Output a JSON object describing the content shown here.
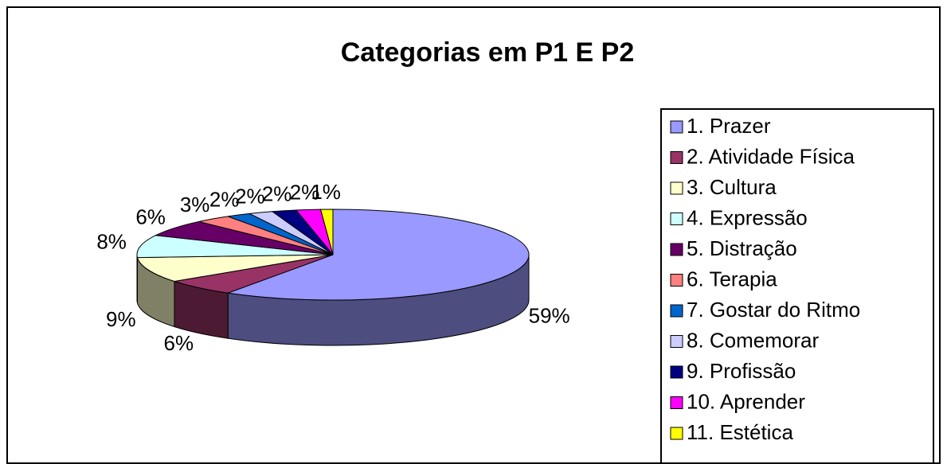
{
  "chart_data": {
    "type": "pie3d",
    "title": "Categorias em P1 E P2",
    "categories": [
      "1. Prazer",
      "2. Atividade Física",
      "3. Cultura",
      "4. Expressão",
      "5. Distração",
      "6. Terapia",
      "7. Gostar do Ritmo",
      "8. Comemorar",
      "9. Profissão",
      "10. Aprender",
      "11. Estética"
    ],
    "values": [
      59,
      6,
      9,
      8,
      6,
      3,
      2,
      2,
      2,
      2,
      1
    ],
    "value_labels": [
      "59%",
      "6%",
      "9%",
      "8%",
      "6%",
      "3%",
      "2%",
      "2%",
      "2%",
      "2%",
      "1%"
    ],
    "colors": [
      "#9999FF",
      "#993366",
      "#FFFFCC",
      "#CCFFFF",
      "#660066",
      "#FF8080",
      "#0066CC",
      "#CCCCFF",
      "#000080",
      "#FF00FF",
      "#FFFF00"
    ],
    "legend": "right"
  }
}
